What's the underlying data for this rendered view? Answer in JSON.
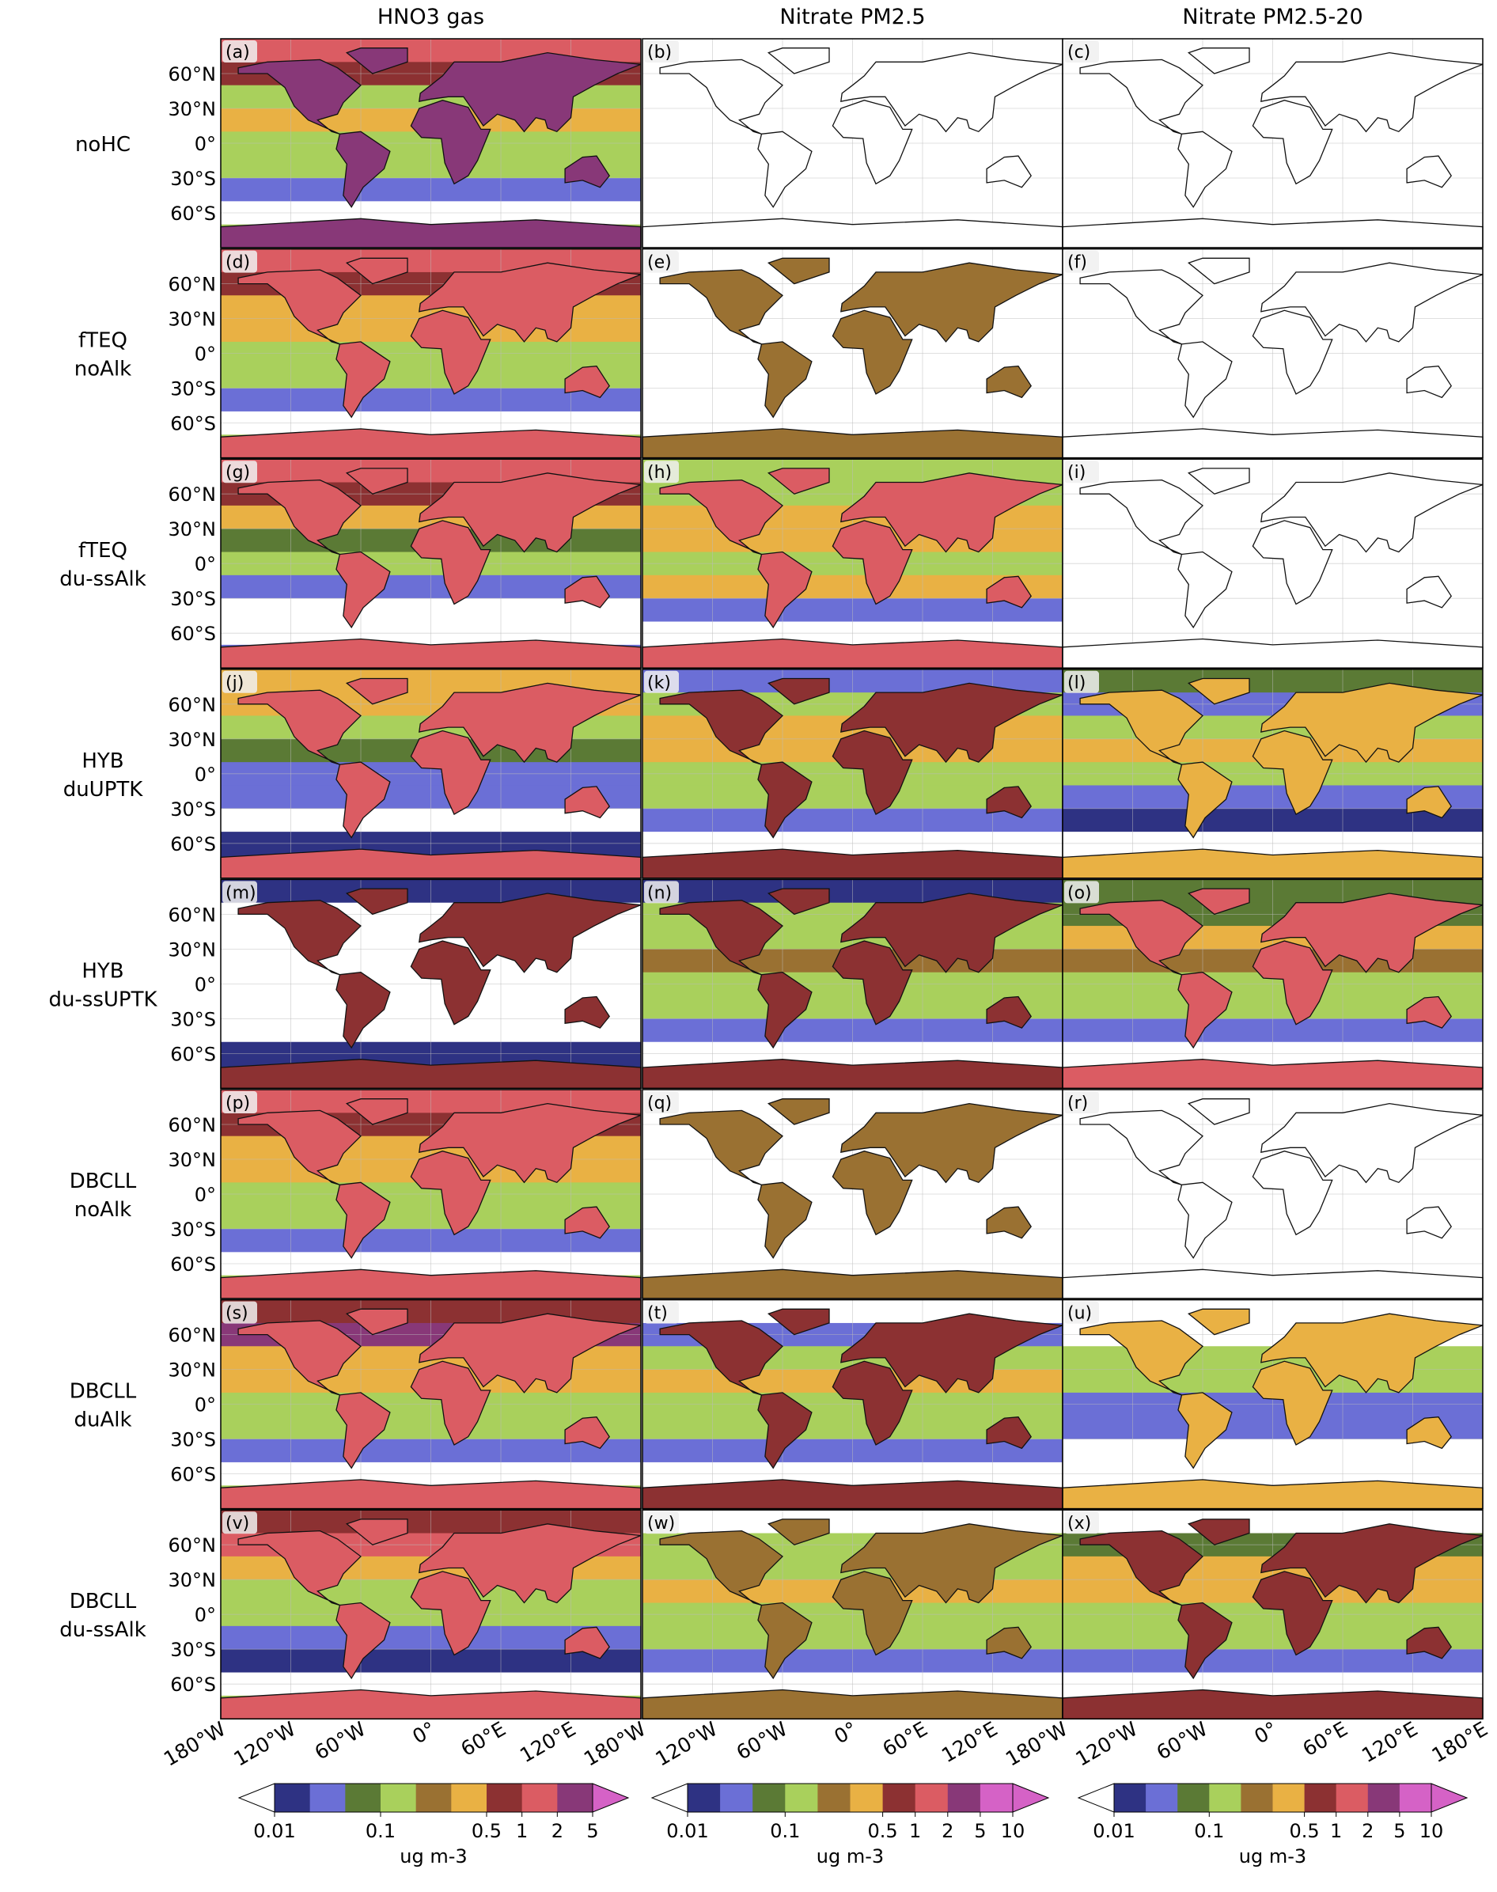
{
  "columns": [
    "HNO3 gas",
    "Nitrate PM2.5",
    "Nitrate PM2.5-20"
  ],
  "rows": [
    [
      "noHC"
    ],
    [
      "fTEQ",
      "noAlk"
    ],
    [
      "fTEQ",
      "du-ssAlk"
    ],
    [
      "HYB",
      "duUPTK"
    ],
    [
      "HYB",
      "du-ssUPTK"
    ],
    [
      "DBCLL",
      "noAlk"
    ],
    [
      "DBCLL",
      "duAlk"
    ],
    [
      "DBCLL",
      "du-ssAlk"
    ]
  ],
  "panels": [
    "(a)",
    "(b)",
    "(c)",
    "(d)",
    "(e)",
    "(f)",
    "(g)",
    "(h)",
    "(i)",
    "(j)",
    "(k)",
    "(l)",
    "(m)",
    "(n)",
    "(o)",
    "(p)",
    "(q)",
    "(r)",
    "(s)",
    "(t)",
    "(u)",
    "(v)",
    "(w)",
    "(x)"
  ],
  "lat_ticks": [
    "60°N",
    "30°N",
    "0°",
    "30°S",
    "60°S"
  ],
  "lon_ticks": [
    [
      "180°W",
      "120°W",
      "60°W",
      "0°",
      "60°E",
      "120°E",
      "180°W"
    ],
    [
      "120°W",
      "60°W",
      "0°",
      "60°E",
      "120°E",
      "180°W"
    ],
    [
      "120°W",
      "60°W",
      "0°",
      "60°E",
      "120°E",
      "180°E"
    ]
  ],
  "colorbars": [
    {
      "ticks": [
        "0.01",
        "0.1",
        "0.5",
        "1",
        "2",
        "5"
      ],
      "unit": "ug m-3"
    },
    {
      "ticks": [
        "0.01",
        "0.1",
        "0.5",
        "1",
        "2",
        "5",
        "10"
      ],
      "unit": "ug m-3"
    },
    {
      "ticks": [
        "0.01",
        "0.1",
        "0.5",
        "1",
        "2",
        "5",
        "10"
      ],
      "unit": "ug m-3"
    }
  ],
  "palette": [
    "#ffffff",
    "#2e3283",
    "#6b6fd6",
    "#5b7a35",
    "#a9d05c",
    "#9a7132",
    "#e9b144",
    "#8c3132",
    "#db5c63",
    "#883878",
    "#d562c6"
  ]
}
